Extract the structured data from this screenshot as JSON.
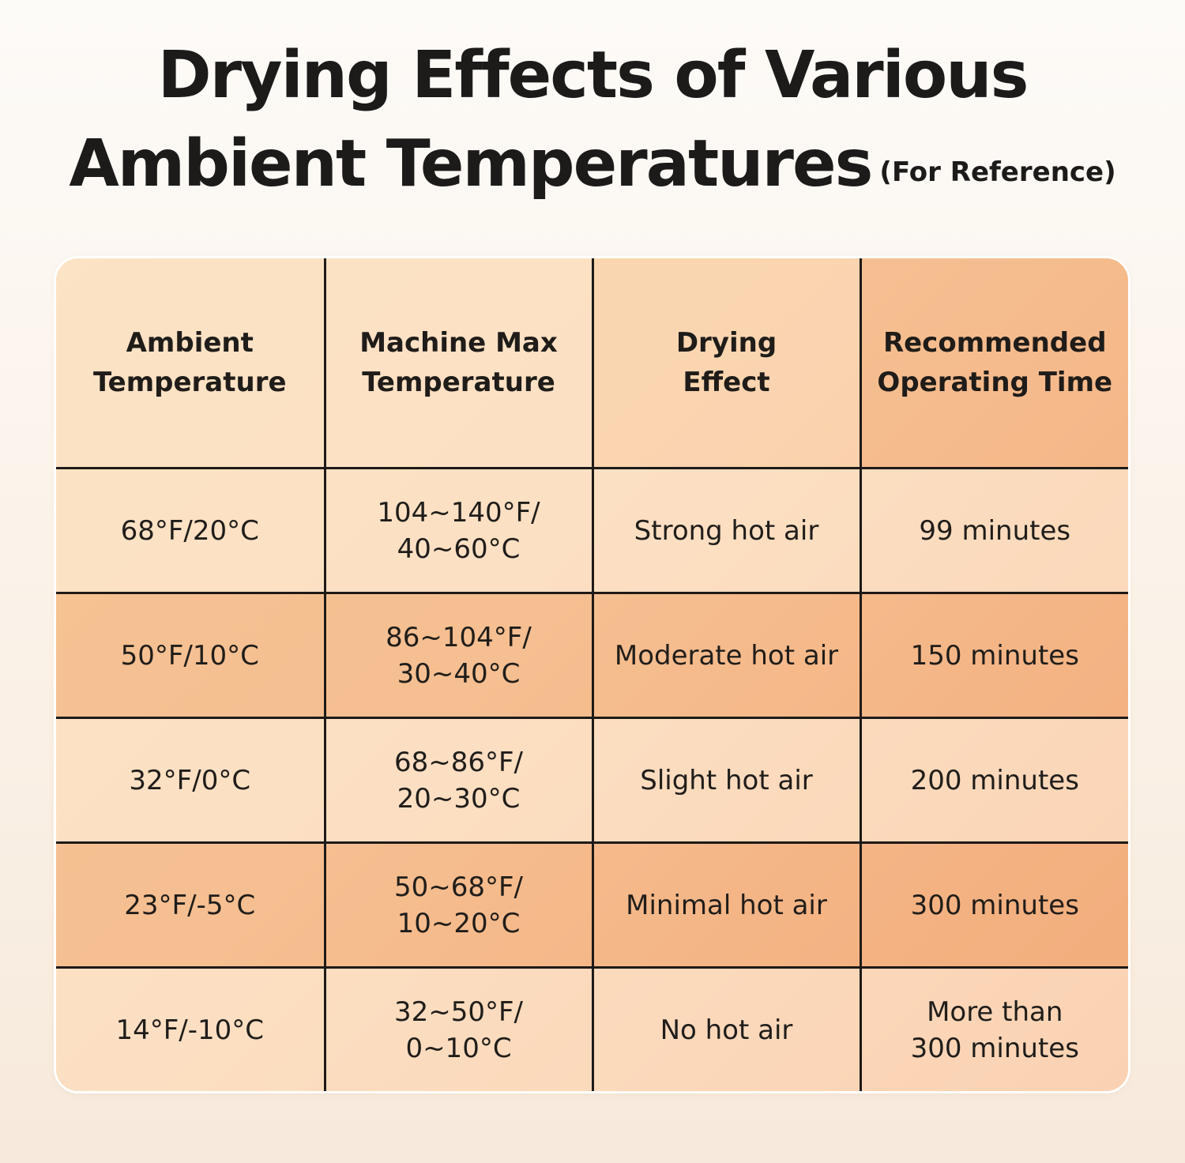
{
  "title": {
    "line1": "Drying Effects of Various",
    "line2": "Ambient Temperatures",
    "note": "(For Reference)"
  },
  "table": {
    "headers": [
      [
        "Ambient",
        "Temperature"
      ],
      [
        "Machine Max",
        "Temperature"
      ],
      [
        "Drying",
        "Effect"
      ],
      [
        "Recommended",
        "Operating Time"
      ]
    ],
    "rows": [
      {
        "ambient": "68°F/20°C",
        "machine_max": [
          "104~140°F/",
          "40~60°C"
        ],
        "effect": "Strong hot air",
        "time": [
          "99 minutes"
        ]
      },
      {
        "ambient": "50°F/10°C",
        "machine_max": [
          "86~104°F/",
          "30~40°C"
        ],
        "effect": "Moderate hot air",
        "time": [
          "150 minutes"
        ]
      },
      {
        "ambient": "32°F/0°C",
        "machine_max": [
          "68~86°F/",
          "20~30°C"
        ],
        "effect": "Slight hot air",
        "time": [
          "200 minutes"
        ]
      },
      {
        "ambient": "23°F/-5°C",
        "machine_max": [
          "50~68°F/",
          "10~20°C"
        ],
        "effect": "Minimal hot air",
        "time": [
          "300 minutes"
        ]
      },
      {
        "ambient": "14°F/-10°C",
        "machine_max": [
          "32~50°F/",
          "0~10°C"
        ],
        "effect": "No hot air",
        "time": [
          "More than",
          "300 minutes"
        ]
      }
    ]
  },
  "colors": {
    "text": "#1c1b1a",
    "grid": "#1e1a17",
    "table_light": "#f9d7aa",
    "table_deep": "#f4b183",
    "background": "#fbf3ea"
  }
}
